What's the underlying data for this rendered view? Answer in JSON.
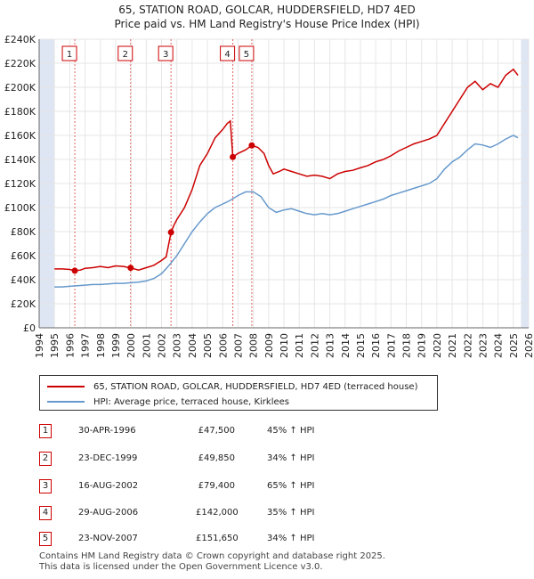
{
  "title_line1": "65, STATION ROAD, GOLCAR, HUDDERSFIELD, HD7 4ED",
  "title_line2": "Price paid vs. HM Land Registry's House Price Index (HPI)",
  "colors": {
    "property": "#cc0000",
    "hpi": "#6699cc",
    "band": "#dde6f2",
    "vline": "#e06666"
  },
  "chart_data": {
    "type": "line",
    "title": "65, STATION ROAD, GOLCAR, HUDDERSFIELD, HD7 4ED",
    "xlim": [
      1994,
      2026
    ],
    "ylim": [
      0,
      240000
    ],
    "y_ticks": [
      0,
      20000,
      40000,
      60000,
      80000,
      100000,
      120000,
      140000,
      160000,
      180000,
      200000,
      220000,
      240000
    ],
    "y_tick_labels": [
      "£0",
      "£20K",
      "£40K",
      "£60K",
      "£80K",
      "£100K",
      "£120K",
      "£140K",
      "£160K",
      "£180K",
      "£200K",
      "£220K",
      "£240K"
    ],
    "x_ticks": [
      1994,
      1995,
      1996,
      1997,
      1998,
      1999,
      2000,
      2001,
      2002,
      2003,
      2004,
      2005,
      2006,
      2007,
      2008,
      2009,
      2010,
      2011,
      2012,
      2013,
      2014,
      2015,
      2016,
      2017,
      2018,
      2019,
      2020,
      2021,
      2022,
      2023,
      2024,
      2025,
      2026
    ],
    "x_tick_labels": [
      "1994",
      "1995",
      "1996",
      "1997",
      "1998",
      "1999",
      "2000",
      "2001",
      "2002",
      "2003",
      "2004",
      "2005",
      "2006",
      "2007",
      "2008",
      "2009",
      "2010",
      "2011",
      "2012",
      "2013",
      "2014",
      "2015",
      "2016",
      "2017",
      "2018",
      "2019",
      "2020",
      "2021",
      "2022",
      "2023",
      "2024",
      "2025",
      "2026"
    ],
    "data_start": 1995.0,
    "data_end": 2025.5,
    "series": [
      {
        "name": "65, STATION ROAD, GOLCAR, HUDDERSFIELD, HD7 4ED (terraced house)",
        "x": [
          1995.0,
          1995.5,
          1996.0,
          1996.33,
          1996.7,
          1997.0,
          1997.5,
          1998.0,
          1998.5,
          1999.0,
          1999.5,
          1999.98,
          2000.5,
          2001.0,
          2001.5,
          2002.0,
          2002.3,
          2002.62,
          2002.8,
          2003.0,
          2003.5,
          2004.0,
          2004.5,
          2005.0,
          2005.5,
          2006.0,
          2006.3,
          2006.5,
          2006.66,
          2007.0,
          2007.5,
          2007.9,
          2008.3,
          2008.7,
          2009.0,
          2009.3,
          2009.7,
          2010.0,
          2010.5,
          2011.0,
          2011.5,
          2012.0,
          2012.5,
          2013.0,
          2013.5,
          2014.0,
          2014.5,
          2015.0,
          2015.5,
          2016.0,
          2016.5,
          2017.0,
          2017.5,
          2018.0,
          2018.5,
          2019.0,
          2019.5,
          2020.0,
          2020.5,
          2021.0,
          2021.5,
          2022.0,
          2022.5,
          2023.0,
          2023.5,
          2024.0,
          2024.5,
          2025.0,
          2025.3
        ],
        "y": [
          49000,
          49000,
          48500,
          47500,
          48000,
          49500,
          50000,
          51000,
          50000,
          51500,
          51000,
          49850,
          48000,
          50000,
          52000,
          56000,
          59000,
          79400,
          85000,
          90000,
          100000,
          115000,
          135000,
          145000,
          158000,
          165000,
          170000,
          172000,
          142000,
          145000,
          148000,
          151650,
          150000,
          145000,
          135000,
          128000,
          130000,
          132000,
          130000,
          128000,
          126000,
          127000,
          126000,
          124000,
          128000,
          130000,
          131000,
          133000,
          135000,
          138000,
          140000,
          143000,
          147000,
          150000,
          153000,
          155000,
          157000,
          160000,
          170000,
          180000,
          190000,
          200000,
          205000,
          198000,
          203000,
          200000,
          210000,
          215000,
          210000
        ],
        "color": "#cc0000"
      },
      {
        "name": "HPI: Average price, terraced house, Kirklees",
        "x": [
          1995.0,
          1995.5,
          1996.0,
          1996.5,
          1997.0,
          1997.5,
          1998.0,
          1998.5,
          1999.0,
          1999.5,
          2000.0,
          2000.5,
          2001.0,
          2001.5,
          2002.0,
          2002.5,
          2003.0,
          2003.5,
          2004.0,
          2004.5,
          2005.0,
          2005.5,
          2006.0,
          2006.5,
          2007.0,
          2007.5,
          2008.0,
          2008.5,
          2009.0,
          2009.5,
          2010.0,
          2010.5,
          2011.0,
          2011.5,
          2012.0,
          2012.5,
          2013.0,
          2013.5,
          2014.0,
          2014.5,
          2015.0,
          2015.5,
          2016.0,
          2016.5,
          2017.0,
          2017.5,
          2018.0,
          2018.5,
          2019.0,
          2019.5,
          2020.0,
          2020.5,
          2021.0,
          2021.5,
          2022.0,
          2022.5,
          2023.0,
          2023.5,
          2024.0,
          2024.5,
          2025.0,
          2025.3
        ],
        "y": [
          34000,
          34000,
          34500,
          35000,
          35500,
          36000,
          36000,
          36500,
          37000,
          37000,
          37500,
          38000,
          39000,
          41000,
          45000,
          52000,
          60000,
          70000,
          80000,
          88000,
          95000,
          100000,
          103000,
          106000,
          110000,
          113000,
          113000,
          109000,
          100000,
          96000,
          98000,
          99000,
          97000,
          95000,
          94000,
          95000,
          94000,
          95000,
          97000,
          99000,
          101000,
          103000,
          105000,
          107000,
          110000,
          112000,
          114000,
          116000,
          118000,
          120000,
          124000,
          132000,
          138000,
          142000,
          148000,
          153000,
          152000,
          150000,
          153000,
          157000,
          160000,
          158000
        ],
        "color": "#6699cc"
      }
    ],
    "transactions": [
      {
        "label": "1",
        "x": 1996.33,
        "price": 47500,
        "date": "30-APR-1996",
        "price_label": "£47,500",
        "hpi": "45% ↑ HPI"
      },
      {
        "label": "2",
        "x": 1999.98,
        "price": 49850,
        "date": "23-DEC-1999",
        "price_label": "£49,850",
        "hpi": "34% ↑ HPI"
      },
      {
        "label": "3",
        "x": 2002.62,
        "price": 79400,
        "date": "16-AUG-2002",
        "price_label": "£79,400",
        "hpi": "65% ↑ HPI"
      },
      {
        "label": "4",
        "x": 2006.66,
        "price": 142000,
        "date": "29-AUG-2006",
        "price_label": "£142,000",
        "hpi": "35% ↑ HPI"
      },
      {
        "label": "5",
        "x": 2007.9,
        "price": 151650,
        "date": "23-NOV-2007",
        "price_label": "£151,650",
        "hpi": "34% ↑ HPI"
      }
    ]
  },
  "legend": {
    "property": "65, STATION ROAD, GOLCAR, HUDDERSFIELD, HD7 4ED (terraced house)",
    "hpi": "HPI: Average price, terraced house, Kirklees"
  },
  "footer_line1": "Contains HM Land Registry data © Crown copyright and database right 2025.",
  "footer_line2": "This data is licensed under the Open Government Licence v3.0."
}
